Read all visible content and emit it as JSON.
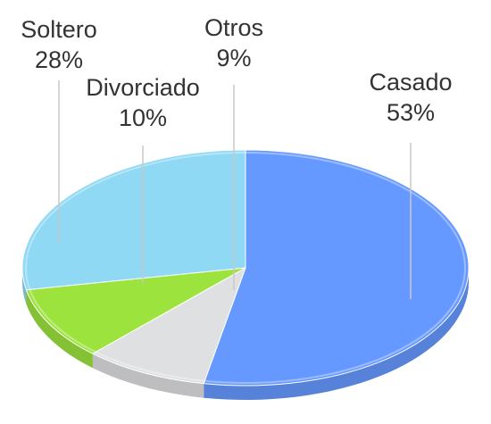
{
  "chart_data": {
    "type": "pie",
    "style": "3d",
    "title": "",
    "series": [
      {
        "name": "Casado",
        "value": 53,
        "label": "53%",
        "color": "#6699ff"
      },
      {
        "name": "Otros",
        "value": 9,
        "label": "9%",
        "color": "#dfe0e2"
      },
      {
        "name": "Divorciado",
        "value": 10,
        "label": "10%",
        "color": "#9de33e"
      },
      {
        "name": "Soltero",
        "value": 28,
        "label": "28%",
        "color": "#8fd9f5"
      }
    ],
    "label_color": "#333333",
    "leader_line_color": "#c8c8c8"
  }
}
